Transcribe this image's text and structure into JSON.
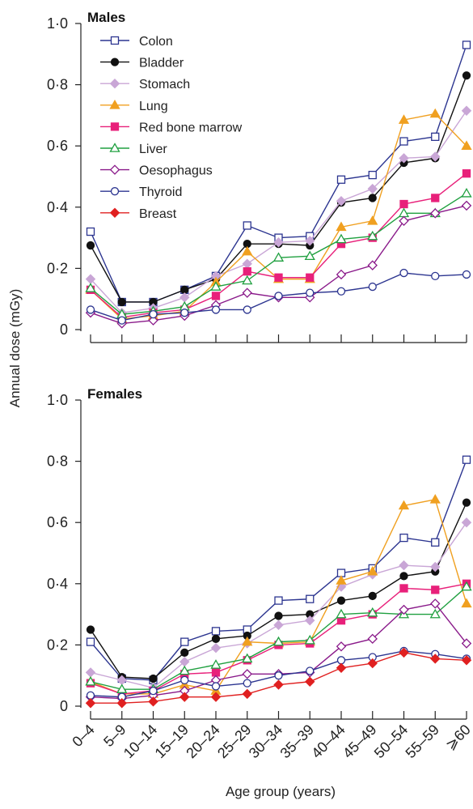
{
  "chart_data": {
    "type": "line",
    "ylabel": "Annual dose (mGy)",
    "xlabel": "Age group (years)",
    "categories": [
      "0–4",
      "5–9",
      "10–14",
      "15–19",
      "20–24",
      "25–29",
      "30–34",
      "35–39",
      "40–44",
      "45–49",
      "50–54",
      "55–59",
      "⩾60"
    ],
    "y_ticks": [
      "0",
      "0·2",
      "0·4",
      "0·6",
      "0·8",
      "1·0"
    ],
    "ylim": [
      0,
      1.0
    ],
    "grid": false,
    "legend_position": "top-left",
    "panels": [
      {
        "title": "Males",
        "series": [
          {
            "name": "Colon",
            "color": "#2c3590",
            "marker": "square-open",
            "values": [
              0.32,
              0.09,
              0.09,
              0.13,
              0.175,
              0.34,
              0.3,
              0.305,
              0.49,
              0.505,
              0.615,
              0.63,
              0.93
            ]
          },
          {
            "name": "Bladder",
            "color": "#111111",
            "marker": "circle-filled",
            "values": [
              0.275,
              0.09,
              0.09,
              0.13,
              0.165,
              0.28,
              0.28,
              0.275,
              0.415,
              0.43,
              0.545,
              0.56,
              0.83
            ]
          },
          {
            "name": "Stomach",
            "color": "#c9a6d6",
            "marker": "diamond-filled",
            "values": [
              0.165,
              0.055,
              0.07,
              0.105,
              0.175,
              0.215,
              0.285,
              0.29,
              0.42,
              0.46,
              0.56,
              0.565,
              0.715
            ]
          },
          {
            "name": "Lung",
            "color": "#f0a020",
            "marker": "triangle-filled",
            "values": [
              0.13,
              0.035,
              0.045,
              0.06,
              0.155,
              0.255,
              0.165,
              0.165,
              0.335,
              0.355,
              0.685,
              0.705,
              0.6
            ]
          },
          {
            "name": "Red bone marrow",
            "color": "#e8207a",
            "marker": "square-filled",
            "values": [
              0.13,
              0.04,
              0.055,
              0.065,
              0.11,
              0.19,
              0.17,
              0.17,
              0.28,
              0.3,
              0.41,
              0.43,
              0.51
            ]
          },
          {
            "name": "Liver",
            "color": "#20a040",
            "marker": "triangle-open",
            "values": [
              0.135,
              0.05,
              0.06,
              0.075,
              0.14,
              0.16,
              0.235,
              0.24,
              0.295,
              0.305,
              0.38,
              0.38,
              0.445
            ]
          },
          {
            "name": "Oesophagus",
            "color": "#8a1a8a",
            "marker": "diamond-open",
            "values": [
              0.055,
              0.02,
              0.03,
              0.045,
              0.08,
              0.12,
              0.105,
              0.105,
              0.18,
              0.21,
              0.355,
              0.38,
              0.405
            ]
          },
          {
            "name": "Thyroid",
            "color": "#2c3590",
            "marker": "circle-open",
            "values": [
              0.065,
              0.03,
              0.05,
              0.055,
              0.065,
              0.065,
              0.11,
              0.12,
              0.125,
              0.14,
              0.185,
              0.175,
              0.18
            ]
          },
          {
            "name": "Breast",
            "color": "#e02020",
            "marker": "diamond-filled",
            "values": []
          }
        ]
      },
      {
        "title": "Females",
        "series": [
          {
            "name": "Colon",
            "color": "#2c3590",
            "marker": "square-open",
            "values": [
              0.21,
              0.09,
              0.085,
              0.21,
              0.245,
              0.25,
              0.345,
              0.35,
              0.435,
              0.45,
              0.55,
              0.535,
              0.805
            ]
          },
          {
            "name": "Bladder",
            "color": "#111111",
            "marker": "circle-filled",
            "values": [
              0.25,
              0.095,
              0.09,
              0.175,
              0.22,
              0.23,
              0.295,
              0.3,
              0.345,
              0.36,
              0.425,
              0.44,
              0.665
            ]
          },
          {
            "name": "Stomach",
            "color": "#c9a6d6",
            "marker": "diamond-filled",
            "values": [
              0.11,
              0.085,
              0.06,
              0.145,
              0.19,
              0.205,
              0.265,
              0.28,
              0.39,
              0.43,
              0.46,
              0.455,
              0.6
            ]
          },
          {
            "name": "Lung",
            "color": "#f0a020",
            "marker": "triangle-filled",
            "values": [
              0.08,
              0.04,
              0.04,
              0.07,
              0.05,
              0.21,
              0.205,
              0.21,
              0.41,
              0.44,
              0.655,
              0.675,
              0.335
            ]
          },
          {
            "name": "Red bone marrow",
            "color": "#e8207a",
            "marker": "square-filled",
            "values": [
              0.075,
              0.04,
              0.05,
              0.105,
              0.11,
              0.15,
              0.2,
              0.205,
              0.28,
              0.3,
              0.385,
              0.38,
              0.4
            ]
          },
          {
            "name": "Liver",
            "color": "#20a040",
            "marker": "triangle-open",
            "values": [
              0.08,
              0.055,
              0.055,
              0.115,
              0.135,
              0.155,
              0.21,
              0.215,
              0.3,
              0.305,
              0.3,
              0.3,
              0.39
            ]
          },
          {
            "name": "Oesophagus",
            "color": "#8a1a8a",
            "marker": "diamond-open",
            "values": [
              0.03,
              0.025,
              0.035,
              0.05,
              0.085,
              0.105,
              0.105,
              0.11,
              0.195,
              0.22,
              0.315,
              0.335,
              0.205
            ]
          },
          {
            "name": "Thyroid",
            "color": "#2c3590",
            "marker": "circle-open",
            "values": [
              0.035,
              0.03,
              0.05,
              0.085,
              0.065,
              0.075,
              0.1,
              0.115,
              0.15,
              0.16,
              0.18,
              0.17,
              0.155
            ]
          },
          {
            "name": "Breast",
            "color": "#e02020",
            "marker": "diamond-filled",
            "values": [
              0.01,
              0.01,
              0.015,
              0.03,
              0.03,
              0.04,
              0.07,
              0.08,
              0.125,
              0.14,
              0.175,
              0.155,
              0.15
            ]
          }
        ]
      }
    ]
  }
}
